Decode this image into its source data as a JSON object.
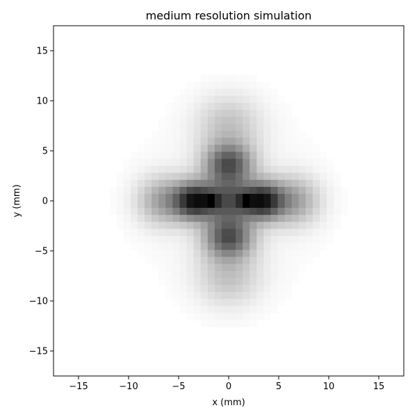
{
  "chart_data": {
    "type": "heatmap",
    "title": "medium resolution simulation",
    "xlabel": "x (mm)",
    "ylabel": "y (mm)",
    "xlim": [
      -17.5,
      17.5
    ],
    "ylim": [
      -17.5,
      17.5
    ],
    "xticks": [
      -15,
      -10,
      -5,
      0,
      5,
      10,
      15
    ],
    "yticks": [
      -15,
      -10,
      -5,
      0,
      5,
      10,
      15
    ],
    "xtick_labels": [
      "−15",
      "−10",
      "−5",
      "0",
      "5",
      "10",
      "15"
    ],
    "ytick_labels": [
      "−15",
      "−10",
      "−5",
      "0",
      "5",
      "10",
      "15"
    ],
    "grid": false,
    "colormap": "Greys",
    "cell_size_mm": 0.7,
    "cell_cols": 50,
    "cell_rows": 50,
    "pattern": "four-lobed cross of intensity centered at origin",
    "colors": {
      "axes": "#000000",
      "background": "#ffffff",
      "low": "#ffffff",
      "high": "#000000"
    }
  }
}
